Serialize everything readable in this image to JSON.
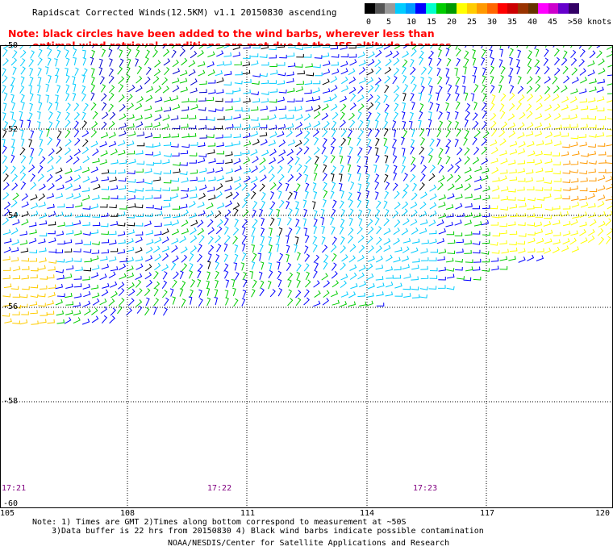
{
  "title": "Rapidscat Corrected Winds(12.5KM) v1.1 20150830 ascending",
  "note": {
    "line1": "Note: black circles have been added to the wind barbs, wherever less than",
    "line2": "optimal wind retrieval conditions are met due to the ISS altitude changes."
  },
  "legend": {
    "colors": [
      "#000000",
      "#555555",
      "#999999",
      "#00ccff",
      "#0099ff",
      "#0000ff",
      "#00ffcc",
      "#00cc00",
      "#009900",
      "#ffff00",
      "#ffcc00",
      "#ff9900",
      "#ff6600",
      "#ff0000",
      "#cc0000",
      "#993300",
      "#663300",
      "#ff00ff",
      "#cc00cc",
      "#6600cc",
      "#330066"
    ],
    "ticks": [
      "0",
      "5",
      "10",
      "15",
      "20",
      "25",
      "30",
      "35",
      "40",
      "45",
      ">50 knots"
    ]
  },
  "axes": {
    "lon_labels": [
      "105",
      "108",
      "111",
      "114",
      "117",
      "120"
    ],
    "lat_labels": [
      "-50",
      "-52",
      "-54",
      "-56",
      "-58",
      "-60"
    ]
  },
  "times": [
    "17:21",
    "17:22",
    "17:23"
  ],
  "footer": {
    "line1": "Note: 1) Times are GMT 2)Times along bottom correspond to measurement at ~50S",
    "line2": "3)Data buffer is 22 hrs from 20150830 4) Black wind barbs indicate possible contamination",
    "line3": "NOAA/NESDIS/Center for Satellite Applications and Research"
  }
}
